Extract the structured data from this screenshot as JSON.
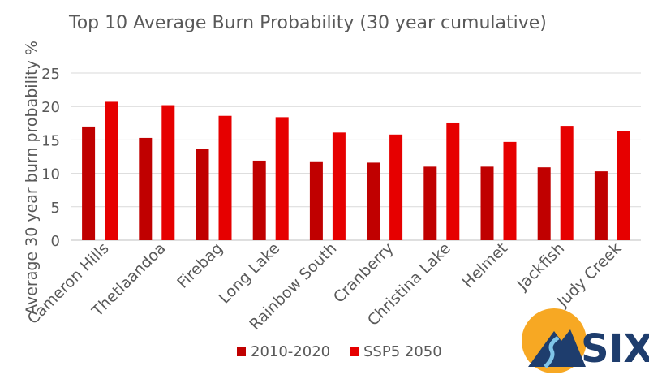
{
  "chart_data": {
    "type": "bar",
    "title": "Top 10 Average Burn Probability (30 year cumulative)",
    "xlabel": "",
    "ylabel": "Average 30 year burn probability %",
    "ylim": [
      0,
      25
    ],
    "yticks": [
      0,
      5,
      10,
      15,
      20,
      25
    ],
    "grid": true,
    "legend_position": "bottom",
    "categories": [
      "Cameron Hills",
      "Thetlaandoa",
      "Firebag",
      "Long Lake",
      "Rainbow South",
      "Cranberry",
      "Christina Lake",
      "Helmet",
      "Jackfish",
      "Judy Creek"
    ],
    "series": [
      {
        "name": "2010-2020",
        "color": "#c00000",
        "values": [
          17.0,
          15.3,
          13.6,
          11.9,
          11.8,
          11.6,
          11.0,
          11.0,
          10.9,
          10.3
        ]
      },
      {
        "name": "SSP5 2050",
        "color": "#e60000",
        "values": [
          20.7,
          20.2,
          18.6,
          18.4,
          16.1,
          15.8,
          17.6,
          14.7,
          17.1,
          16.3
        ]
      }
    ]
  },
  "logo": {
    "text": "SIX"
  }
}
